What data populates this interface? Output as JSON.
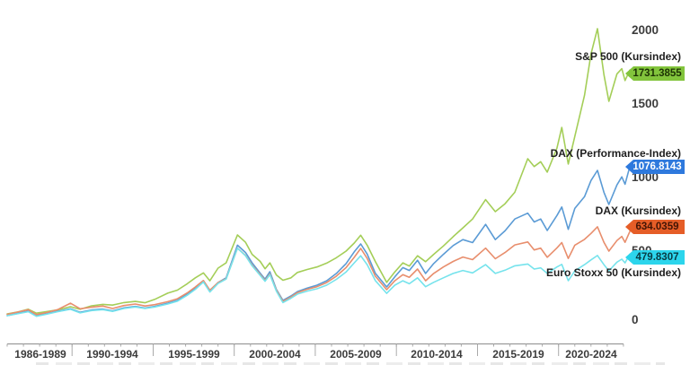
{
  "chart_data": {
    "type": "line",
    "title": "",
    "grid": false,
    "legend_position": "right-annotations",
    "x_axis": {
      "labels": [
        "1986-1989",
        "1990-1994",
        "1995-1999",
        "2000-2004",
        "2005-2009",
        "2010-2014",
        "2015-2019",
        "2020-2024"
      ],
      "range_years": [
        1986,
        2025
      ]
    },
    "y_axis": {
      "side": "right",
      "range": [
        0,
        2100
      ],
      "ticks": [
        0,
        500,
        1000,
        1500,
        2000
      ],
      "tick_labels": [
        "0",
        "500",
        "1000",
        "1500",
        "2000"
      ]
    },
    "series": [
      {
        "id": "sp500",
        "name": "S&P 500 (Kursindex)",
        "last_value": "1731.3855",
        "color": "#a4ce58",
        "badge_color": "#82c43c",
        "points": [
          [
            1986.0,
            73
          ],
          [
            1986.6,
            85
          ],
          [
            1987.3,
            105
          ],
          [
            1987.8,
            78
          ],
          [
            1988.4,
            88
          ],
          [
            1989.1,
            100
          ],
          [
            1989.9,
            122
          ],
          [
            1990.5,
            104
          ],
          [
            1991.2,
            128
          ],
          [
            1991.9,
            138
          ],
          [
            1992.5,
            133
          ],
          [
            1993.2,
            150
          ],
          [
            1993.9,
            158
          ],
          [
            1994.5,
            149
          ],
          [
            1995.1,
            172
          ],
          [
            1995.9,
            214
          ],
          [
            1996.5,
            235
          ],
          [
            1997.1,
            278
          ],
          [
            1997.6,
            318
          ],
          [
            1998.1,
            352
          ],
          [
            1998.5,
            298
          ],
          [
            1999.0,
            384
          ],
          [
            1999.5,
            420
          ],
          [
            2000.2,
            610
          ],
          [
            2000.7,
            560
          ],
          [
            2001.1,
            478
          ],
          [
            2001.6,
            430
          ],
          [
            2001.9,
            380
          ],
          [
            2002.2,
            420
          ],
          [
            2002.6,
            338
          ],
          [
            2003.0,
            302
          ],
          [
            2003.5,
            318
          ],
          [
            2003.9,
            355
          ],
          [
            2004.5,
            375
          ],
          [
            2005.1,
            392
          ],
          [
            2005.7,
            418
          ],
          [
            2006.3,
            455
          ],
          [
            2006.9,
            500
          ],
          [
            2007.4,
            555
          ],
          [
            2007.8,
            608
          ],
          [
            2008.2,
            540
          ],
          [
            2008.7,
            430
          ],
          [
            2009.4,
            287
          ],
          [
            2009.9,
            358
          ],
          [
            2010.4,
            420
          ],
          [
            2010.8,
            398
          ],
          [
            2011.3,
            468
          ],
          [
            2011.8,
            428
          ],
          [
            2012.3,
            478
          ],
          [
            2012.9,
            535
          ],
          [
            2013.5,
            598
          ],
          [
            2014.1,
            658
          ],
          [
            2014.7,
            718
          ],
          [
            2015.5,
            850
          ],
          [
            2016.1,
            768
          ],
          [
            2016.7,
            822
          ],
          [
            2017.3,
            900
          ],
          [
            2018.1,
            1128
          ],
          [
            2018.5,
            1075
          ],
          [
            2018.9,
            1108
          ],
          [
            2019.3,
            1037
          ],
          [
            2019.9,
            1200
          ],
          [
            2020.2,
            1341
          ],
          [
            2020.6,
            1092
          ],
          [
            2021.0,
            1280
          ],
          [
            2021.6,
            1560
          ],
          [
            2022.0,
            1840
          ],
          [
            2022.4,
            2012
          ],
          [
            2022.8,
            1700
          ],
          [
            2023.1,
            1518
          ],
          [
            2023.6,
            1705
          ],
          [
            2023.9,
            1740
          ],
          [
            2024.1,
            1660
          ],
          [
            2024.4,
            1731.39
          ]
        ]
      },
      {
        "id": "daxp",
        "name": "DAX (Performance-Index)",
        "last_value": "1076.8143",
        "color": "#5b9bd5",
        "badge_color": "#2e79dd",
        "points": [
          [
            1986.0,
            61
          ],
          [
            1986.6,
            75
          ],
          [
            1987.3,
            92
          ],
          [
            1987.8,
            60
          ],
          [
            1988.4,
            73
          ],
          [
            1989.1,
            90
          ],
          [
            1989.9,
            108
          ],
          [
            1990.5,
            84
          ],
          [
            1991.2,
            100
          ],
          [
            1991.9,
            106
          ],
          [
            1992.5,
            94
          ],
          [
            1993.2,
            114
          ],
          [
            1993.9,
            124
          ],
          [
            1994.5,
            113
          ],
          [
            1995.1,
            124
          ],
          [
            1995.9,
            146
          ],
          [
            1996.5,
            165
          ],
          [
            1997.1,
            208
          ],
          [
            1997.6,
            248
          ],
          [
            1998.1,
            298
          ],
          [
            1998.5,
            228
          ],
          [
            1999.0,
            286
          ],
          [
            1999.5,
            318
          ],
          [
            2000.2,
            540
          ],
          [
            2000.7,
            490
          ],
          [
            2001.1,
            420
          ],
          [
            2001.6,
            350
          ],
          [
            2001.9,
            310
          ],
          [
            2002.2,
            360
          ],
          [
            2002.6,
            240
          ],
          [
            2003.0,
            165
          ],
          [
            2003.5,
            195
          ],
          [
            2003.9,
            225
          ],
          [
            2004.5,
            248
          ],
          [
            2005.1,
            268
          ],
          [
            2005.7,
            298
          ],
          [
            2006.3,
            348
          ],
          [
            2006.9,
            415
          ],
          [
            2007.4,
            495
          ],
          [
            2007.8,
            549
          ],
          [
            2008.2,
            480
          ],
          [
            2008.7,
            350
          ],
          [
            2009.4,
            256
          ],
          [
            2009.9,
            325
          ],
          [
            2010.4,
            388
          ],
          [
            2010.8,
            368
          ],
          [
            2011.3,
            438
          ],
          [
            2011.8,
            348
          ],
          [
            2012.3,
            415
          ],
          [
            2012.9,
            478
          ],
          [
            2013.5,
            538
          ],
          [
            2014.1,
            578
          ],
          [
            2014.7,
            558
          ],
          [
            2015.5,
            682
          ],
          [
            2016.1,
            578
          ],
          [
            2016.7,
            638
          ],
          [
            2017.3,
            718
          ],
          [
            2018.1,
            758
          ],
          [
            2018.5,
            698
          ],
          [
            2018.9,
            718
          ],
          [
            2019.3,
            640
          ],
          [
            2019.9,
            742
          ],
          [
            2020.2,
            800
          ],
          [
            2020.6,
            648
          ],
          [
            2021.0,
            790
          ],
          [
            2021.6,
            870
          ],
          [
            2022.0,
            980
          ],
          [
            2022.4,
            1049
          ],
          [
            2022.8,
            900
          ],
          [
            2023.1,
            817
          ],
          [
            2023.6,
            950
          ],
          [
            2023.9,
            1005
          ],
          [
            2024.1,
            955
          ],
          [
            2024.4,
            1076.81
          ]
        ]
      },
      {
        "id": "daxk",
        "name": "DAX (Kursindex)",
        "last_value": "634.0359",
        "color": "#e88e6d",
        "badge_color": "#e55d27",
        "points": [
          [
            1986.0,
            70
          ],
          [
            1986.6,
            85
          ],
          [
            1987.3,
            102
          ],
          [
            1987.8,
            68
          ],
          [
            1988.4,
            82
          ],
          [
            1989.1,
            102
          ],
          [
            1989.9,
            146
          ],
          [
            1990.5,
            108
          ],
          [
            1991.2,
            118
          ],
          [
            1991.9,
            126
          ],
          [
            1992.5,
            110
          ],
          [
            1993.2,
            130
          ],
          [
            1993.9,
            140
          ],
          [
            1994.5,
            127
          ],
          [
            1995.1,
            136
          ],
          [
            1995.9,
            156
          ],
          [
            1996.5,
            176
          ],
          [
            1997.1,
            216
          ],
          [
            1997.6,
            256
          ],
          [
            1998.1,
            300
          ],
          [
            1998.5,
            234
          ],
          [
            1999.0,
            286
          ],
          [
            1999.5,
            312
          ],
          [
            2000.2,
            520
          ],
          [
            2000.7,
            470
          ],
          [
            2001.1,
            405
          ],
          [
            2001.6,
            340
          ],
          [
            2001.9,
            300
          ],
          [
            2002.2,
            345
          ],
          [
            2002.6,
            235
          ],
          [
            2003.0,
            158
          ],
          [
            2003.5,
            188
          ],
          [
            2003.9,
            218
          ],
          [
            2004.5,
            240
          ],
          [
            2005.1,
            258
          ],
          [
            2005.7,
            286
          ],
          [
            2006.3,
            330
          ],
          [
            2006.9,
            388
          ],
          [
            2007.4,
            458
          ],
          [
            2007.8,
            518
          ],
          [
            2008.2,
            450
          ],
          [
            2008.7,
            330
          ],
          [
            2009.4,
            238
          ],
          [
            2009.9,
            298
          ],
          [
            2010.4,
            340
          ],
          [
            2010.8,
            322
          ],
          [
            2011.3,
            378
          ],
          [
            2011.8,
            298
          ],
          [
            2012.3,
            348
          ],
          [
            2012.9,
            392
          ],
          [
            2013.5,
            430
          ],
          [
            2014.1,
            460
          ],
          [
            2014.7,
            442
          ],
          [
            2015.5,
            520
          ],
          [
            2016.1,
            448
          ],
          [
            2016.7,
            490
          ],
          [
            2017.3,
            542
          ],
          [
            2018.1,
            562
          ],
          [
            2018.5,
            508
          ],
          [
            2018.9,
            520
          ],
          [
            2019.3,
            458
          ],
          [
            2019.9,
            522
          ],
          [
            2020.2,
            558
          ],
          [
            2020.6,
            450
          ],
          [
            2021.0,
            540
          ],
          [
            2021.6,
            580
          ],
          [
            2022.0,
            620
          ],
          [
            2022.4,
            665
          ],
          [
            2022.8,
            560
          ],
          [
            2023.1,
            500
          ],
          [
            2023.6,
            572
          ],
          [
            2023.9,
            600
          ],
          [
            2024.1,
            560
          ],
          [
            2024.4,
            634.04
          ]
        ]
      },
      {
        "id": "estoxx",
        "name": "Euro Stoxx 50 (Kursindex)",
        "last_value": "479.8307",
        "color": "#76e3ec",
        "badge_color": "#2cd5ec",
        "points": [
          [
            1986.0,
            61
          ],
          [
            1986.6,
            73
          ],
          [
            1987.3,
            88
          ],
          [
            1987.8,
            57
          ],
          [
            1988.4,
            70
          ],
          [
            1989.1,
            88
          ],
          [
            1989.9,
            104
          ],
          [
            1990.5,
            80
          ],
          [
            1991.2,
            96
          ],
          [
            1991.9,
            102
          ],
          [
            1992.5,
            90
          ],
          [
            1993.2,
            110
          ],
          [
            1993.9,
            120
          ],
          [
            1994.5,
            110
          ],
          [
            1995.1,
            120
          ],
          [
            1995.9,
            140
          ],
          [
            1996.5,
            160
          ],
          [
            1997.1,
            200
          ],
          [
            1997.6,
            240
          ],
          [
            1998.1,
            290
          ],
          [
            1998.5,
            222
          ],
          [
            1999.0,
            280
          ],
          [
            1999.5,
            310
          ],
          [
            2000.2,
            520
          ],
          [
            2000.7,
            468
          ],
          [
            2001.1,
            400
          ],
          [
            2001.6,
            335
          ],
          [
            2001.9,
            295
          ],
          [
            2002.2,
            340
          ],
          [
            2002.6,
            228
          ],
          [
            2003.0,
            150
          ],
          [
            2003.5,
            180
          ],
          [
            2003.9,
            208
          ],
          [
            2004.5,
            228
          ],
          [
            2005.1,
            244
          ],
          [
            2005.7,
            268
          ],
          [
            2006.3,
            308
          ],
          [
            2006.9,
            358
          ],
          [
            2007.4,
            420
          ],
          [
            2007.8,
            468
          ],
          [
            2008.2,
            408
          ],
          [
            2008.7,
            300
          ],
          [
            2009.4,
            213
          ],
          [
            2009.9,
            268
          ],
          [
            2010.4,
            298
          ],
          [
            2010.8,
            278
          ],
          [
            2011.3,
            318
          ],
          [
            2011.8,
            258
          ],
          [
            2012.3,
            288
          ],
          [
            2012.9,
            318
          ],
          [
            2013.5,
            348
          ],
          [
            2014.1,
            368
          ],
          [
            2014.7,
            352
          ],
          [
            2015.5,
            408
          ],
          [
            2016.1,
            348
          ],
          [
            2016.7,
            370
          ],
          [
            2017.3,
            400
          ],
          [
            2018.1,
            412
          ],
          [
            2018.5,
            378
          ],
          [
            2018.9,
            386
          ],
          [
            2019.3,
            348
          ],
          [
            2019.9,
            392
          ],
          [
            2020.2,
            410
          ],
          [
            2020.6,
            299
          ],
          [
            2021.0,
            365
          ],
          [
            2021.6,
            408
          ],
          [
            2022.0,
            440
          ],
          [
            2022.4,
            470
          ],
          [
            2022.8,
            408
          ],
          [
            2023.1,
            366
          ],
          [
            2023.6,
            425
          ],
          [
            2023.9,
            445
          ],
          [
            2024.1,
            420
          ],
          [
            2024.4,
            479.83
          ]
        ]
      }
    ]
  },
  "colors": {
    "axis_line": "#8c8c8c",
    "tick_mark": "#aaaaaa",
    "tick_text": "#3d3d3d",
    "label_text": "#1f1f1f"
  }
}
